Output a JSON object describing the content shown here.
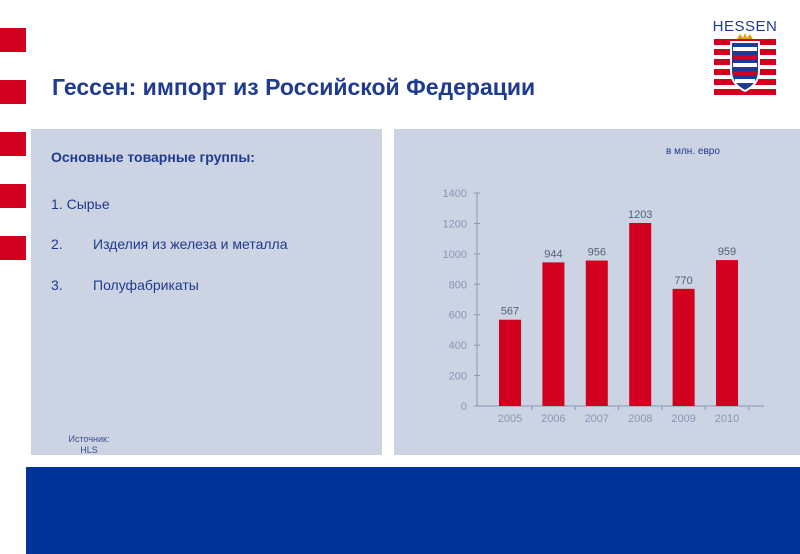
{
  "title": "Гессен: импорт из Российской Федерации",
  "logo": {
    "text": "HESSEN",
    "icon": "hessen-coat-of-arms-icon"
  },
  "groups": {
    "heading": "Основные товарные группы:",
    "items": [
      {
        "number": "1.",
        "label": "Сырье"
      },
      {
        "number": "2.",
        "label": "Изделия из железа и металла"
      },
      {
        "number": "3.",
        "label": "Полуфабрикаты"
      }
    ]
  },
  "source": {
    "label": "Источник:",
    "value": "HLS"
  },
  "colors": {
    "accent_red": "#d2001e",
    "brand_blue": "#003399",
    "panel": "#ccd3e3",
    "text": "#1f3b8f"
  },
  "chart_data": {
    "type": "bar",
    "unit_label": "в млн. евро",
    "categories": [
      "2005",
      "2006",
      "2007",
      "2008",
      "2009",
      "2010"
    ],
    "values": [
      567,
      944,
      956,
      1203,
      770,
      959
    ],
    "data_labels": [
      "567",
      "944",
      "956",
      "1203",
      "770",
      "959"
    ],
    "ylim": [
      0,
      1400
    ],
    "y_ticks": [
      0,
      200,
      400,
      600,
      800,
      1000,
      1200,
      1400
    ],
    "bar_color": "#d2001e",
    "grid": false,
    "title": "",
    "xlabel": "",
    "ylabel": ""
  }
}
